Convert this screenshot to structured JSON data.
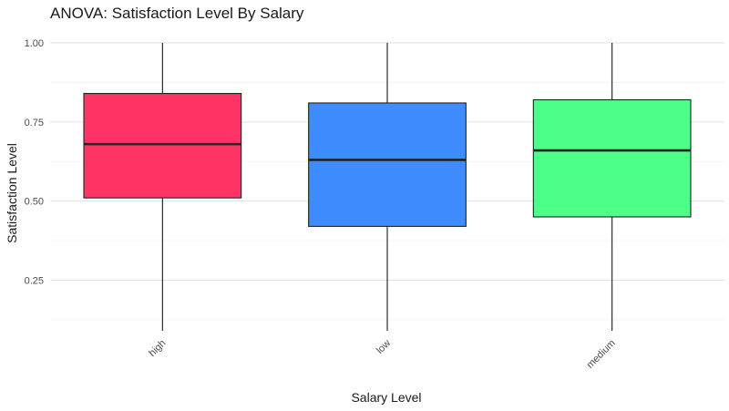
{
  "chart_data": {
    "type": "boxplot",
    "title": "ANOVA: Satisfaction Level By Salary",
    "xlabel": "Salary Level",
    "ylabel": "Satisfaction Level",
    "ylim": [
      0.09,
      1.0
    ],
    "yticks": [
      0.25,
      0.5,
      0.75,
      1.0
    ],
    "ytick_labels": [
      "0.25",
      "0.50",
      "0.75",
      "1.00"
    ],
    "grid": true,
    "legend": "none",
    "categories": [
      "high",
      "low",
      "medium"
    ],
    "boxes": [
      {
        "category": "high",
        "min": 0.09,
        "q1": 0.51,
        "median": 0.68,
        "q3": 0.84,
        "max": 1.0,
        "color": "#ff3366"
      },
      {
        "category": "low",
        "min": 0.09,
        "q1": 0.42,
        "median": 0.63,
        "q3": 0.81,
        "max": 1.0,
        "color": "#3f8cff"
      },
      {
        "category": "medium",
        "min": 0.09,
        "q1": 0.45,
        "median": 0.66,
        "q3": 0.82,
        "max": 1.0,
        "color": "#4cff86"
      }
    ]
  }
}
